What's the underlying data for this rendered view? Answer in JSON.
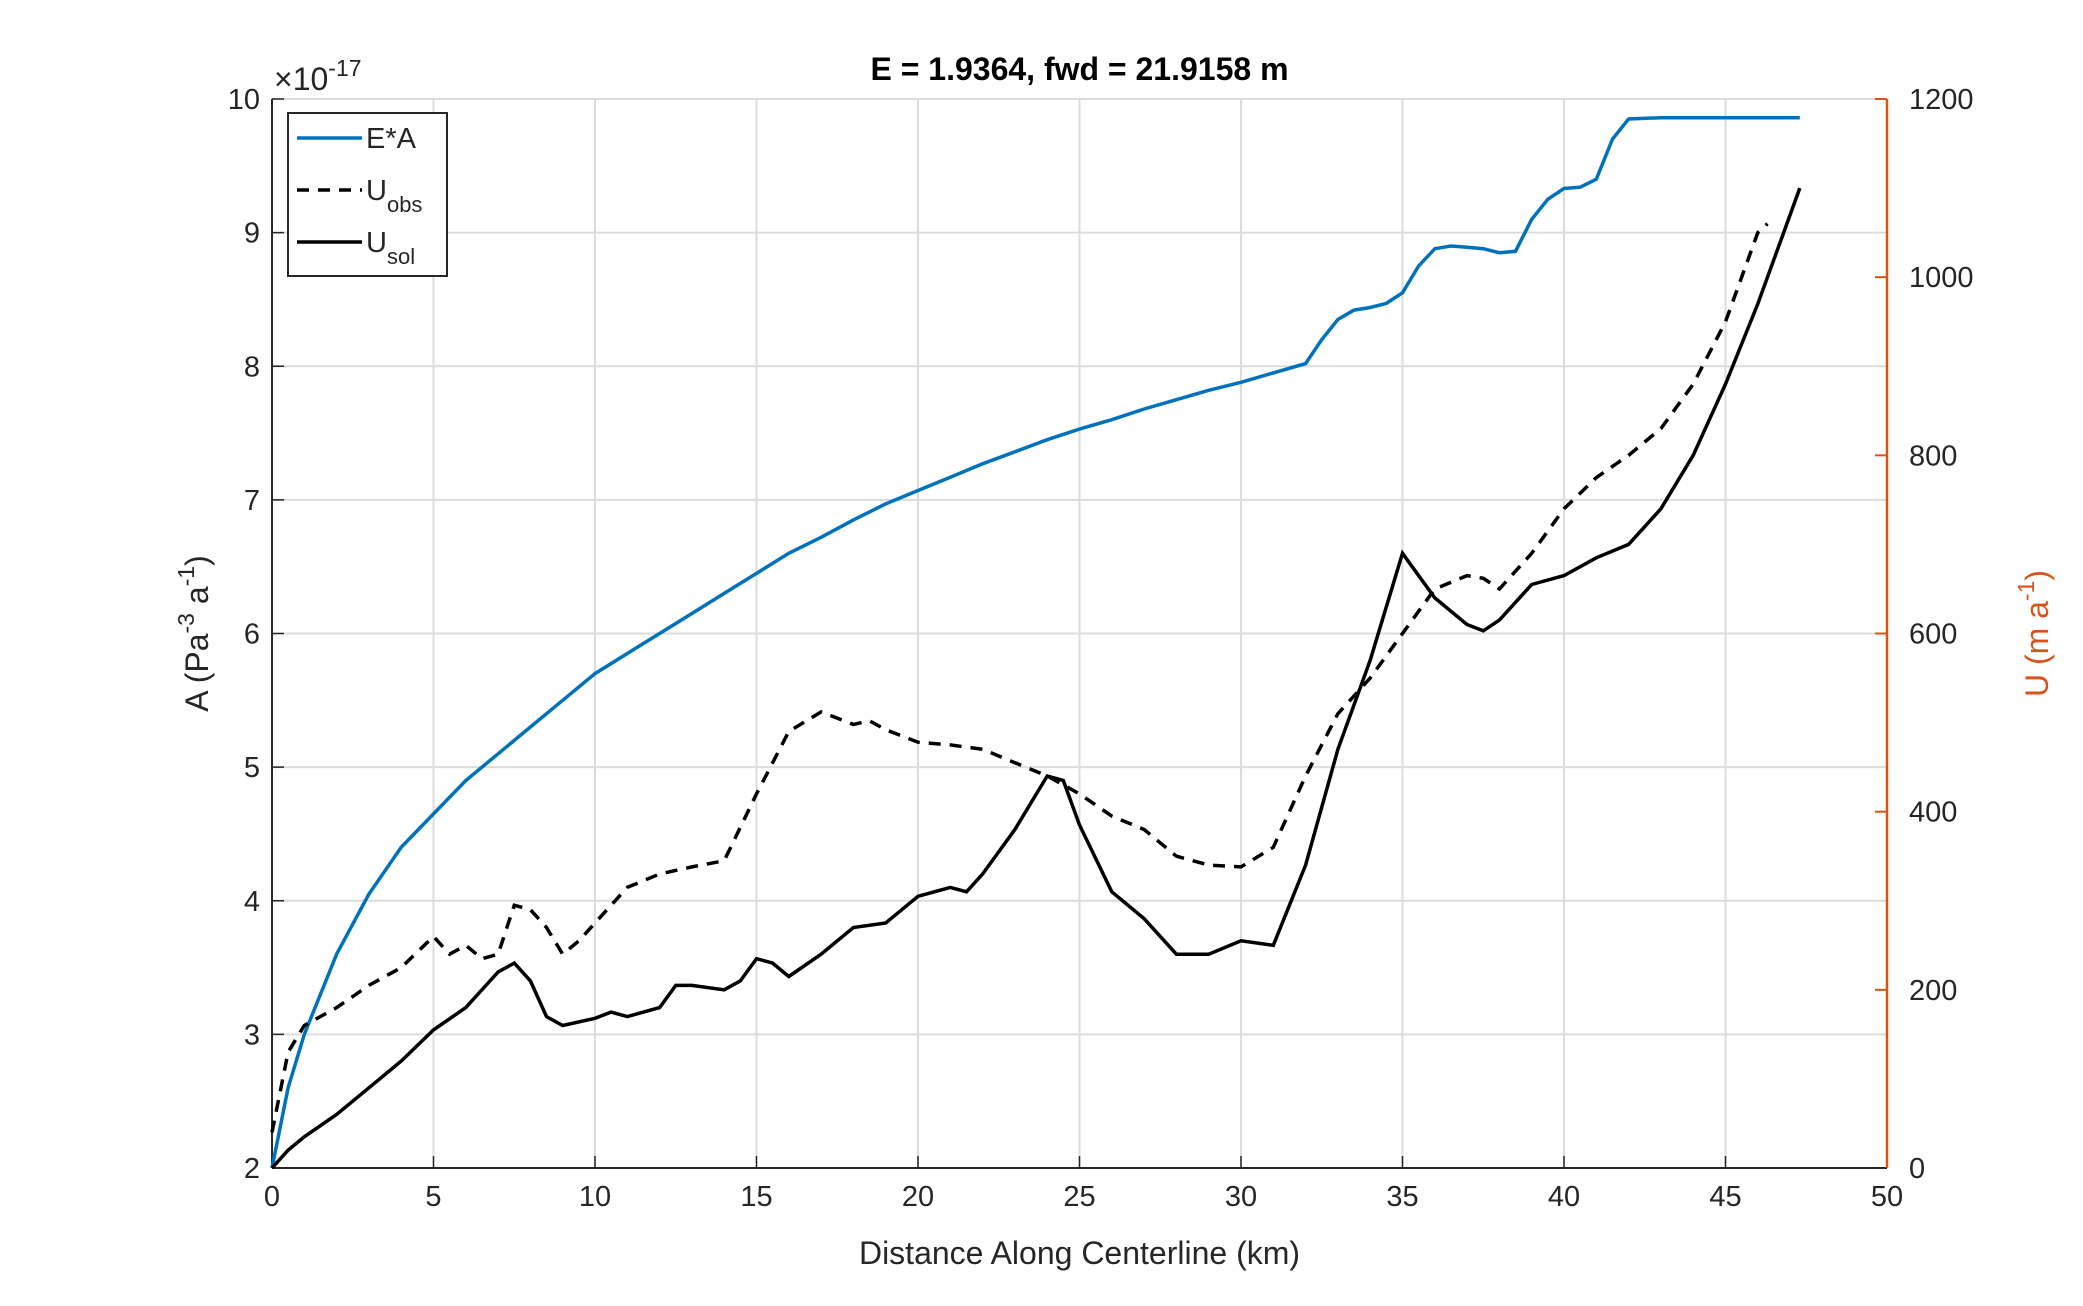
{
  "chart_data": {
    "type": "line",
    "title": "E = 1.9364, fwd = 21.9158 m",
    "xlabel": "Distance Along Centerline (km)",
    "ylabel": [
      "A (Pa",
      "-3",
      " a",
      "-1",
      ")"
    ],
    "y2label": [
      "U (m a",
      "-1",
      ")"
    ],
    "y_exponent": [
      "×10",
      "-17"
    ],
    "xlim": [
      0,
      50
    ],
    "xticks": [
      0,
      5,
      10,
      15,
      20,
      25,
      30,
      35,
      40,
      45,
      50
    ],
    "ylim": [
      2,
      10
    ],
    "yticks": [
      2,
      3,
      4,
      5,
      6,
      7,
      8,
      9,
      10
    ],
    "y2lim": [
      0,
      1200
    ],
    "y2ticks": [
      0,
      200,
      400,
      600,
      800,
      1000,
      1200
    ],
    "y2color": "#d95319",
    "grid": true,
    "legend": "upper left",
    "series": [
      {
        "name": "E*A",
        "color": "#0072bd",
        "linestyle": "solid",
        "x": [
          0,
          0.5,
          1,
          2,
          3,
          4,
          5,
          6,
          7,
          8,
          9,
          10,
          11,
          12,
          13,
          14,
          15,
          16,
          17,
          18,
          19,
          20,
          21,
          22,
          23,
          24,
          25,
          26,
          27,
          28,
          29,
          30,
          31,
          32,
          32.5,
          33,
          33.5,
          34,
          34.5,
          35,
          35.5,
          36,
          36.5,
          37,
          37.5,
          38,
          38.5,
          39,
          39.5,
          40,
          40.5,
          41,
          41.5,
          42,
          43,
          47.3
        ],
        "values": [
          2.0,
          2.6,
          3.0,
          3.6,
          4.05,
          4.4,
          4.65,
          4.9,
          5.1,
          5.3,
          5.5,
          5.7,
          5.85,
          6.0,
          6.15,
          6.3,
          6.45,
          6.6,
          6.72,
          6.85,
          6.97,
          7.07,
          7.17,
          7.27,
          7.36,
          7.45,
          7.53,
          7.6,
          7.68,
          7.75,
          7.82,
          7.88,
          7.95,
          8.02,
          8.2,
          8.35,
          8.42,
          8.44,
          8.47,
          8.55,
          8.75,
          8.88,
          8.9,
          8.89,
          8.88,
          8.85,
          8.86,
          9.1,
          9.25,
          9.33,
          9.34,
          9.4,
          9.7,
          9.85,
          9.86,
          9.86
        ]
      },
      {
        "name": "U",
        "subscript": "obs",
        "color": "#000000",
        "linestyle": "dashed",
        "axis": "y2",
        "x": [
          0,
          0.5,
          1,
          2,
          3,
          4,
          5,
          5.5,
          6,
          6.5,
          7,
          7.5,
          8,
          8.5,
          9,
          9.5,
          10,
          11,
          12,
          13,
          14,
          15,
          16,
          17,
          18,
          18.5,
          19,
          20,
          21,
          22,
          23,
          24,
          25,
          26,
          27,
          28,
          29,
          30,
          31,
          32,
          33,
          34,
          35,
          36,
          37,
          37.5,
          38,
          39,
          40,
          41,
          42,
          43,
          44,
          45,
          46,
          46.3
        ],
        "values": [
          40,
          130,
          160,
          180,
          205,
          225,
          260,
          240,
          250,
          235,
          240,
          295,
          290,
          270,
          240,
          255,
          275,
          315,
          330,
          338,
          345,
          420,
          490,
          512,
          498,
          502,
          492,
          478,
          475,
          470,
          455,
          440,
          420,
          395,
          380,
          350,
          340,
          338,
          360,
          440,
          510,
          550,
          600,
          650,
          665,
          662,
          650,
          690,
          740,
          775,
          800,
          830,
          880,
          950,
          1050,
          1060
        ]
      },
      {
        "name": "U",
        "subscript": "sol",
        "color": "#000000",
        "linestyle": "solid",
        "axis": "y2",
        "x": [
          0,
          0.5,
          1,
          2,
          3,
          4,
          5,
          6,
          7,
          7.5,
          8,
          8.5,
          9,
          10,
          10.5,
          11,
          12,
          12.5,
          13,
          14,
          14.5,
          15,
          15.5,
          16,
          17,
          18,
          19,
          20,
          21,
          21.5,
          22,
          23,
          24,
          24.5,
          25,
          26,
          27,
          28,
          29,
          30,
          31,
          32,
          33,
          34,
          35,
          36,
          37,
          37.5,
          38,
          39,
          40,
          41,
          42,
          43,
          44,
          45,
          46,
          47.3
        ],
        "values": [
          0,
          20,
          35,
          60,
          90,
          120,
          155,
          180,
          220,
          230,
          210,
          170,
          160,
          168,
          175,
          170,
          180,
          205,
          205,
          200,
          210,
          235,
          230,
          215,
          240,
          270,
          275,
          305,
          315,
          310,
          330,
          380,
          440,
          435,
          385,
          310,
          280,
          240,
          240,
          255,
          250,
          340,
          470,
          570,
          690,
          640,
          610,
          603,
          615,
          655,
          665,
          685,
          700,
          740,
          800,
          880,
          970,
          1100
        ]
      }
    ]
  }
}
